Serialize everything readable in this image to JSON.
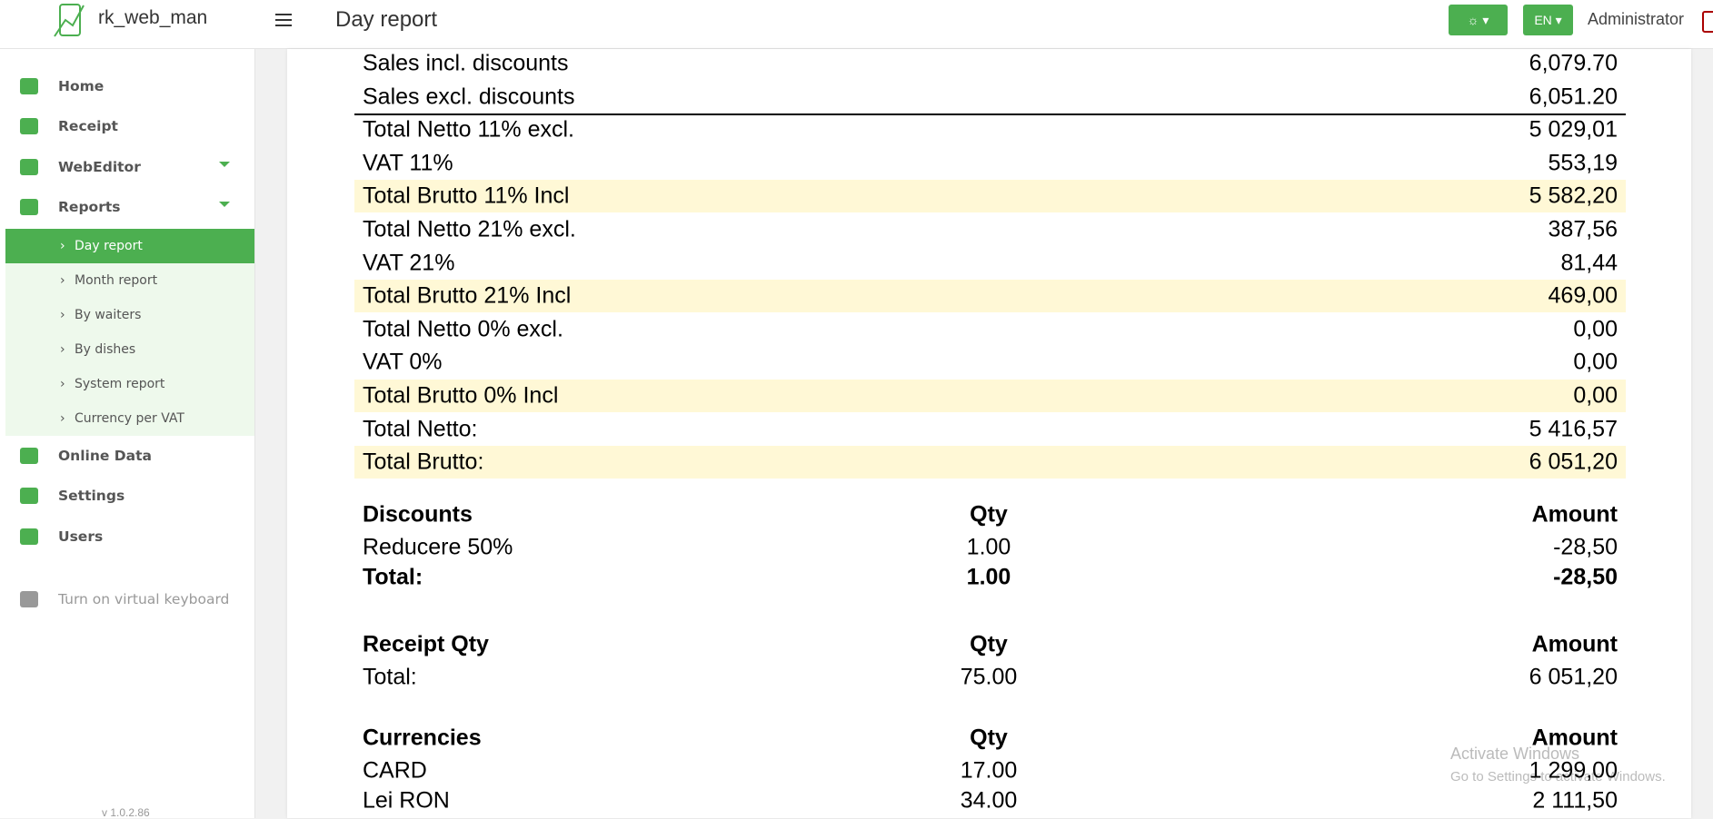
{
  "header": {
    "app_name": "rk_web_man",
    "title": "Day report",
    "lang": "EN",
    "user": "Administrator"
  },
  "sidebar": {
    "items": [
      {
        "label": "Home",
        "expandable": false
      },
      {
        "label": "Receipt",
        "expandable": false
      },
      {
        "label": "WebEditor",
        "expandable": true
      },
      {
        "label": "Reports",
        "expandable": true
      }
    ],
    "submenu": [
      {
        "label": "Day report",
        "active": true
      },
      {
        "label": "Month report",
        "active": false
      },
      {
        "label": "By waiters",
        "active": false
      },
      {
        "label": "By dishes",
        "active": false
      },
      {
        "label": "System report",
        "active": false
      },
      {
        "label": "Currency per VAT",
        "active": false
      }
    ],
    "items_after": [
      {
        "label": "Online Data"
      },
      {
        "label": "Settings"
      },
      {
        "label": "Users"
      }
    ],
    "keyboard": "Turn on virtual keyboard",
    "version": "v 1.0.2.86"
  },
  "report": {
    "summary": [
      {
        "label": "Sales incl. discounts",
        "value": "6,079.70",
        "highlight": false
      },
      {
        "label": "Sales excl. discounts",
        "value": "6,051.20",
        "highlight": false
      },
      {
        "label": "Total Netto 11% excl.",
        "value": "5 029,01",
        "highlight": false
      },
      {
        "label": "VAT 11%",
        "value": "553,19",
        "highlight": false
      },
      {
        "label": "Total Brutto 11% Incl",
        "value": "5 582,20",
        "highlight": true
      },
      {
        "label": "Total Netto 21% excl.",
        "value": "387,56",
        "highlight": false
      },
      {
        "label": "VAT 21%",
        "value": "81,44",
        "highlight": false
      },
      {
        "label": "Total Brutto 21% Incl",
        "value": "469,00",
        "highlight": true
      },
      {
        "label": "Total Netto 0% excl.",
        "value": "0,00",
        "highlight": false
      },
      {
        "label": "VAT 0%",
        "value": "0,00",
        "highlight": false
      },
      {
        "label": "Total Brutto 0% Incl",
        "value": "0,00",
        "highlight": true
      },
      {
        "label": "Total Netto:",
        "value": "5 416,57",
        "highlight": false
      },
      {
        "label": "Total Brutto:",
        "value": "6 051,20",
        "highlight": true
      }
    ],
    "sections": [
      {
        "headers": [
          "Discounts",
          "Qty",
          "Amount"
        ],
        "rows": [
          [
            "Reducere 50%",
            "1.00",
            "-28,50"
          ]
        ],
        "total": [
          "Total:",
          "1.00",
          "-28,50"
        ]
      },
      {
        "headers": [
          "Receipt Qty",
          "Qty",
          "Amount"
        ],
        "rows": [
          [
            "Total:",
            "75.00",
            "6 051,20"
          ]
        ]
      },
      {
        "headers": [
          "Currencies",
          "Qty",
          "Amount"
        ],
        "rows": [
          [
            "CARD",
            "17.00",
            "1 299,00"
          ],
          [
            "Lei RON",
            "34.00",
            "2 111,50"
          ]
        ]
      }
    ]
  },
  "watermark": {
    "title": "Activate Windows",
    "text": "Go to Settings to activate Windows."
  }
}
